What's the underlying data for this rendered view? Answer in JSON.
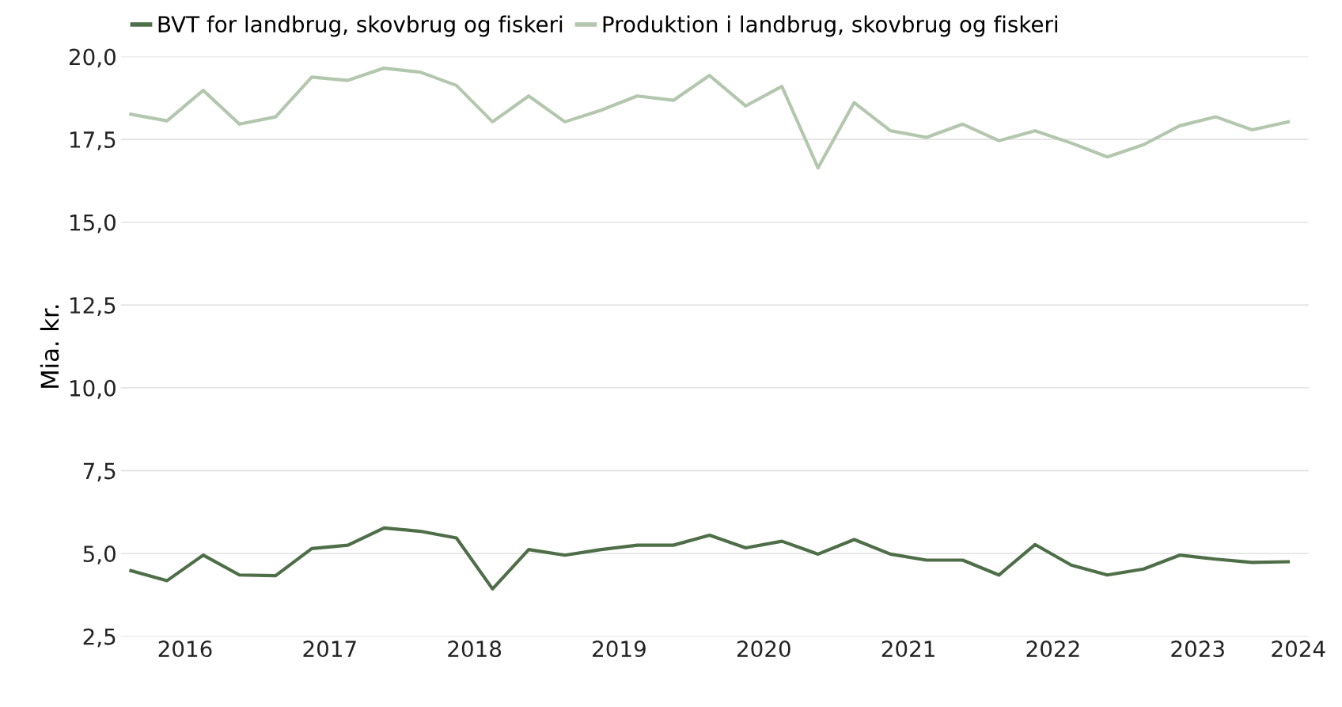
{
  "chart_data": {
    "type": "line",
    "ylabel": "Mia. kr.",
    "x": [
      2016.0,
      2016.25,
      2016.5,
      2016.75,
      2017.0,
      2017.25,
      2017.5,
      2017.75,
      2018.0,
      2018.25,
      2018.5,
      2018.75,
      2019.0,
      2019.25,
      2019.5,
      2019.75,
      2020.0,
      2020.25,
      2020.5,
      2020.75,
      2021.0,
      2021.25,
      2021.5,
      2021.75,
      2022.0,
      2022.25,
      2022.5,
      2022.75,
      2023.0,
      2023.25,
      2023.5,
      2023.75,
      2024.0
    ],
    "series": [
      {
        "name": "BVT for landbrug, skovbrug og fiskeri",
        "color": "#4e6e48",
        "values": [
          4.48,
          4.18,
          4.95,
          4.35,
          4.33,
          5.15,
          5.25,
          5.77,
          5.67,
          5.47,
          3.93,
          5.12,
          4.95,
          5.12,
          5.25,
          5.25,
          5.55,
          5.17,
          5.37,
          4.98,
          5.42,
          4.98,
          4.8,
          4.8,
          4.35,
          5.27,
          4.65,
          4.35,
          4.53,
          4.95,
          4.83,
          4.73,
          4.75
        ]
      },
      {
        "name": "Produktion i landbrug, skovbrug og fiskeri",
        "color": "#b3c7ae",
        "values": [
          18.26,
          18.06,
          18.98,
          17.96,
          18.18,
          19.38,
          19.28,
          19.65,
          19.53,
          19.13,
          18.03,
          18.81,
          18.03,
          18.38,
          18.81,
          18.68,
          19.43,
          18.51,
          19.1,
          16.64,
          18.61,
          17.76,
          17.56,
          17.96,
          17.46,
          17.76,
          17.39,
          16.97,
          17.34,
          17.91,
          18.18,
          17.79,
          18.03
        ]
      }
    ],
    "xlim": [
      2015.93,
      2024.14
    ],
    "xticks": [
      {
        "value": 2016.375,
        "label": "2016"
      },
      {
        "value": 2017.375,
        "label": "2017"
      },
      {
        "value": 2018.375,
        "label": "2018"
      },
      {
        "value": 2019.375,
        "label": "2019"
      },
      {
        "value": 2020.375,
        "label": "2020"
      },
      {
        "value": 2021.375,
        "label": "2021"
      },
      {
        "value": 2022.375,
        "label": "2022"
      },
      {
        "value": 2023.375,
        "label": "2023"
      },
      {
        "value": 2024.07,
        "label": "2024"
      }
    ],
    "ylim": [
      2.5,
      20.0
    ],
    "yticks": [
      {
        "value": 2.5,
        "label": "2,5"
      },
      {
        "value": 5.0,
        "label": "5,0"
      },
      {
        "value": 7.5,
        "label": "7,5"
      },
      {
        "value": 10.0,
        "label": "10,0"
      },
      {
        "value": 12.5,
        "label": "12,5"
      },
      {
        "value": 15.0,
        "label": "15,0"
      },
      {
        "value": 17.5,
        "label": "17,5"
      },
      {
        "value": 20.0,
        "label": "20,0"
      }
    ],
    "grid": "y",
    "legend": "top",
    "marker": "none",
    "line_style": "solid"
  }
}
